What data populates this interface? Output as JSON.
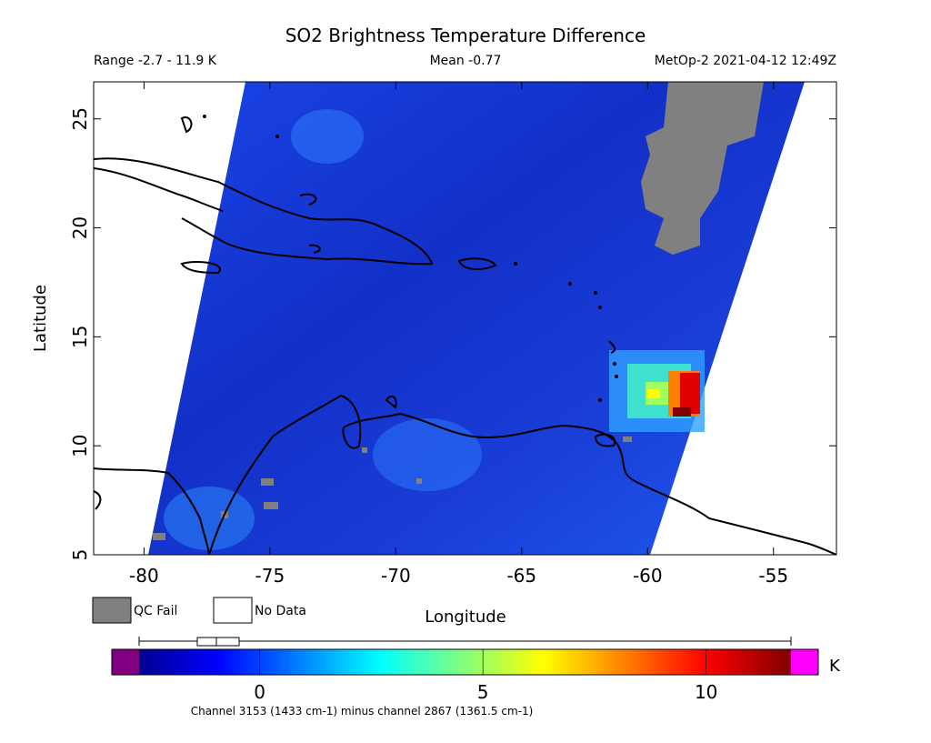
{
  "title": "SO2 Brightness Temperature Difference",
  "range_text": "Range -2.7 - 11.9 K",
  "mean_text": "Mean -0.77",
  "instrument_text": "MetOp-2 2021-04-12 12:49Z",
  "x_label": "Longitude",
  "y_label": "Latitude",
  "xlim": [
    -82,
    -52.5
  ],
  "ylim": [
    5,
    26.7
  ],
  "xticks": [
    -80,
    -75,
    -70,
    -65,
    -60,
    -55
  ],
  "yticks": [
    5,
    10,
    15,
    20,
    25
  ],
  "legend": [
    "QC Fail",
    "No Data"
  ],
  "colorbar": {
    "lim": [
      -2.7,
      11.9
    ],
    "ticks": [
      0,
      5,
      10
    ],
    "unit": "K",
    "caption": "Channel 3153 (1433 cm-1) minus channel 2867 (1361.5 cm-1)"
  }
}
